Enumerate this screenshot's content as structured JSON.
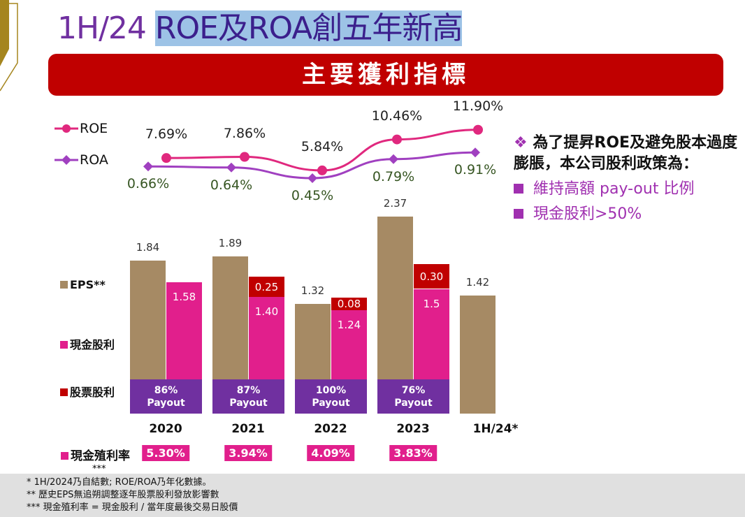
{
  "title": {
    "part1": "1H/24 ",
    "roe": "ROE",
    "and": "及",
    "roa": "ROA",
    "rest": "創五年新高"
  },
  "banner": "主要獲利指標",
  "side": {
    "bullet": "❖",
    "text": "為了提昇ROE及避免股本過度膨脹，本公司股利政策為：",
    "items": [
      "維持高額 pay-out 比例",
      "現金股利>50%"
    ]
  },
  "legend": {
    "roe": "ROE",
    "roa": "ROA",
    "eps": "EPS**",
    "cash": "現金股利",
    "stock": "股票股利",
    "yield": "現金殖利率",
    "yield_note": "***"
  },
  "colors": {
    "roe": "#e0287e",
    "roa": "#a040c0",
    "eps": "#a68a64",
    "cash": "#e11f8c",
    "stock": "#c00000",
    "payout": "#7030a0"
  },
  "chart_data": {
    "type": "bar",
    "categories": [
      "2020",
      "2021",
      "2022",
      "2023",
      "1H/24*"
    ],
    "roe": {
      "values": [
        7.69,
        7.86,
        5.84,
        10.46,
        11.9
      ],
      "labels": [
        "7.69%",
        "7.86%",
        "5.84%",
        "10.46%",
        "11.90%"
      ]
    },
    "roa": {
      "values": [
        0.66,
        0.64,
        0.45,
        0.79,
        0.91
      ],
      "labels": [
        "0.66%",
        "0.64%",
        "0.45%",
        "0.79%",
        "0.91%"
      ]
    },
    "eps": {
      "values": [
        1.84,
        1.89,
        1.32,
        2.37,
        1.42
      ],
      "labels": [
        "1.84",
        "1.89",
        "1.32",
        "2.37",
        "1.42"
      ]
    },
    "cash_dividend": {
      "values": [
        1.58,
        1.4,
        1.24,
        1.5,
        null
      ],
      "labels": [
        "1.58",
        "1.40",
        "1.24",
        "1.5",
        ""
      ]
    },
    "stock_dividend": {
      "values": [
        0,
        0.25,
        0.08,
        0.3,
        null
      ],
      "labels": [
        "",
        "0.25",
        "0.08",
        "0.30",
        ""
      ]
    },
    "payout": [
      {
        "pct": "86%",
        "label": "Payout"
      },
      {
        "pct": "87%",
        "label": "Payout"
      },
      {
        "pct": "100%",
        "label": "Payout"
      },
      {
        "pct": "76%",
        "label": "Payout"
      }
    ],
    "cash_yield": [
      "5.30%",
      "3.94%",
      "4.09%",
      "3.83%"
    ]
  },
  "footer": [
    "*   1H/2024乃自結數; ROE/ROA乃年化數據。",
    "**   歷史EPS無追朔調整逐年股票股利發放影響數",
    "***  現金殖利率 = 現金股利 / 當年度最後交易日股價"
  ]
}
